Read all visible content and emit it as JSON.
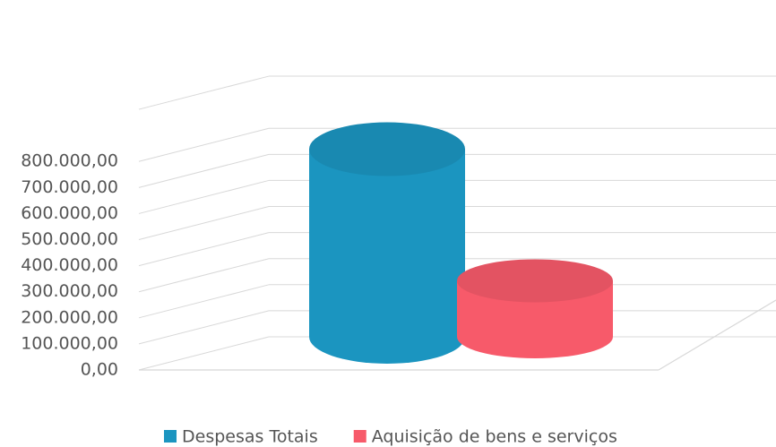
{
  "chart_data": {
    "type": "bar3d",
    "categories": [
      null
    ],
    "series": [
      {
        "name": "Despesas Totais",
        "color": "#1b95c0",
        "values": [
          720000
        ]
      },
      {
        "name": "Aquisição de bens e serviços",
        "color": "#f75a6a",
        "values": [
          215000
        ]
      }
    ],
    "ylim": [
      0,
      1000000
    ],
    "yticks": [
      {
        "value": 0,
        "label": "0,00"
      },
      {
        "value": 100000,
        "label": "100.000,00"
      },
      {
        "value": 200000,
        "label": "200.000,00"
      },
      {
        "value": 300000,
        "label": "300.000,00"
      },
      {
        "value": 400000,
        "label": "400.000,00"
      },
      {
        "value": 500000,
        "label": "500.000,00"
      },
      {
        "value": 600000,
        "label": "600.000,00"
      },
      {
        "value": 700000,
        "label": "700.000,00"
      },
      {
        "value": 800000,
        "label": "800.000,00"
      }
    ],
    "grid": true,
    "legend": "bottom"
  }
}
